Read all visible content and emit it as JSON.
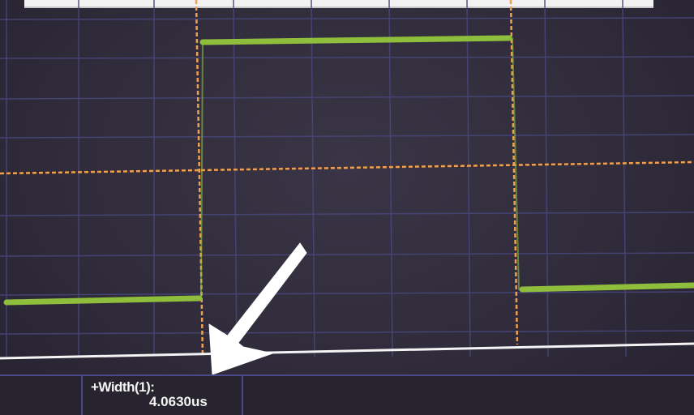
{
  "screen": {
    "background": "#302c3b",
    "trace_color": "#8fbe3c",
    "cursor_color": "#f0a050",
    "grid_color": "#4a4a8a",
    "annotation_arrow_color": "#ffffff"
  },
  "measurement": {
    "label": "+Width(1):",
    "value": "4.0630us"
  }
}
